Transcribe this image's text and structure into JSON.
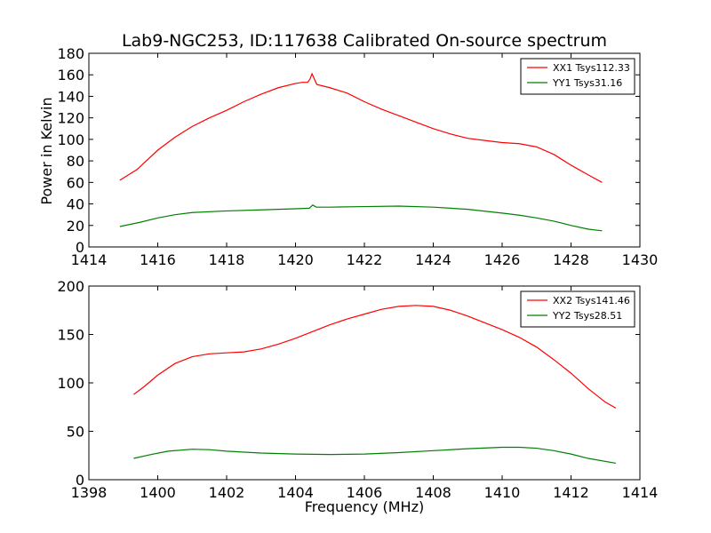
{
  "chart_data": [
    {
      "type": "line",
      "title": "Lab9-NGC253, ID:117638 Calibrated On-source spectrum",
      "xlabel": "",
      "ylabel": "Power in Kelvin",
      "xlim": [
        1414,
        1430
      ],
      "ylim": [
        0,
        180
      ],
      "xticks": [
        1414,
        1416,
        1418,
        1420,
        1422,
        1424,
        1426,
        1428,
        1430
      ],
      "yticks": [
        0,
        20,
        40,
        60,
        80,
        100,
        120,
        140,
        160,
        180
      ],
      "grid": false,
      "legend": "top-right",
      "series": [
        {
          "name": "XX1 Tsys112.33",
          "color": "#ff0000",
          "points": [
            [
              1414.9,
              62
            ],
            [
              1415.4,
              72
            ],
            [
              1416.0,
              90
            ],
            [
              1416.5,
              102
            ],
            [
              1417.0,
              112
            ],
            [
              1417.5,
              120
            ],
            [
              1418.0,
              127
            ],
            [
              1418.5,
              135
            ],
            [
              1419.0,
              142
            ],
            [
              1419.5,
              148
            ],
            [
              1420.0,
              152
            ],
            [
              1420.2,
              153
            ],
            [
              1420.35,
              153
            ],
            [
              1420.42,
              156
            ],
            [
              1420.48,
              161
            ],
            [
              1420.55,
              156
            ],
            [
              1420.62,
              151
            ],
            [
              1421.0,
              148
            ],
            [
              1421.5,
              143
            ],
            [
              1422.0,
              135
            ],
            [
              1422.5,
              128
            ],
            [
              1423.0,
              122
            ],
            [
              1423.5,
              116
            ],
            [
              1424.0,
              110
            ],
            [
              1424.5,
              105
            ],
            [
              1425.0,
              101
            ],
            [
              1425.5,
              99
            ],
            [
              1426.0,
              97
            ],
            [
              1426.5,
              96
            ],
            [
              1427.0,
              93
            ],
            [
              1427.5,
              86
            ],
            [
              1428.0,
              76
            ],
            [
              1428.5,
              67
            ],
            [
              1428.9,
              60
            ]
          ]
        },
        {
          "name": "YY1 Tsys31.16",
          "color": "#008000",
          "points": [
            [
              1414.9,
              19
            ],
            [
              1415.5,
              23
            ],
            [
              1416.0,
              27
            ],
            [
              1416.5,
              30
            ],
            [
              1417.0,
              32
            ],
            [
              1418.0,
              33.5
            ],
            [
              1419.0,
              34.5
            ],
            [
              1420.0,
              35.5
            ],
            [
              1420.4,
              36
            ],
            [
              1420.5,
              39
            ],
            [
              1420.6,
              37
            ],
            [
              1421.0,
              37
            ],
            [
              1422.0,
              37.5
            ],
            [
              1423.0,
              38
            ],
            [
              1424.0,
              37
            ],
            [
              1425.0,
              35
            ],
            [
              1426.0,
              31.5
            ],
            [
              1426.5,
              29.5
            ],
            [
              1427.0,
              27
            ],
            [
              1427.5,
              24
            ],
            [
              1428.0,
              20
            ],
            [
              1428.5,
              16.5
            ],
            [
              1428.9,
              15
            ]
          ]
        }
      ]
    },
    {
      "type": "line",
      "title": "",
      "xlabel": "Frequency (MHz)",
      "ylabel": "",
      "xlim": [
        1398,
        1414
      ],
      "ylim": [
        0,
        200
      ],
      "xticks": [
        1398,
        1400,
        1402,
        1404,
        1406,
        1408,
        1410,
        1412,
        1414
      ],
      "yticks": [
        0,
        50,
        100,
        150,
        200
      ],
      "grid": false,
      "legend": "top-right",
      "series": [
        {
          "name": "XX2 Tsys141.46",
          "color": "#ff0000",
          "points": [
            [
              1399.3,
              88
            ],
            [
              1399.6,
              96
            ],
            [
              1400.0,
              108
            ],
            [
              1400.5,
              120
            ],
            [
              1401.0,
              127
            ],
            [
              1401.5,
              130
            ],
            [
              1402.0,
              131
            ],
            [
              1402.5,
              132
            ],
            [
              1403.0,
              135
            ],
            [
              1403.5,
              140
            ],
            [
              1404.0,
              146
            ],
            [
              1404.5,
              153
            ],
            [
              1405.0,
              160
            ],
            [
              1405.5,
              166
            ],
            [
              1406.0,
              171
            ],
            [
              1406.5,
              176
            ],
            [
              1407.0,
              179
            ],
            [
              1407.5,
              180
            ],
            [
              1408.0,
              179
            ],
            [
              1408.5,
              175
            ],
            [
              1409.0,
              169
            ],
            [
              1409.5,
              162
            ],
            [
              1410.0,
              155
            ],
            [
              1410.5,
              147
            ],
            [
              1411.0,
              137
            ],
            [
              1411.5,
              124
            ],
            [
              1412.0,
              110
            ],
            [
              1412.5,
              94
            ],
            [
              1413.0,
              80
            ],
            [
              1413.3,
              74
            ]
          ]
        },
        {
          "name": "YY2 Tsys28.51",
          "color": "#008000",
          "points": [
            [
              1399.3,
              22
            ],
            [
              1399.8,
              26
            ],
            [
              1400.3,
              29.5
            ],
            [
              1401.0,
              31.5
            ],
            [
              1401.5,
              31
            ],
            [
              1402.0,
              29.5
            ],
            [
              1403.0,
              27.5
            ],
            [
              1404.0,
              26.5
            ],
            [
              1405.0,
              26
            ],
            [
              1406.0,
              26.5
            ],
            [
              1407.0,
              28
            ],
            [
              1408.0,
              30
            ],
            [
              1409.0,
              32
            ],
            [
              1410.0,
              33.5
            ],
            [
              1410.5,
              33.5
            ],
            [
              1411.0,
              32.5
            ],
            [
              1411.5,
              30
            ],
            [
              1412.0,
              26.5
            ],
            [
              1412.5,
              22
            ],
            [
              1413.3,
              17
            ]
          ]
        }
      ]
    }
  ]
}
